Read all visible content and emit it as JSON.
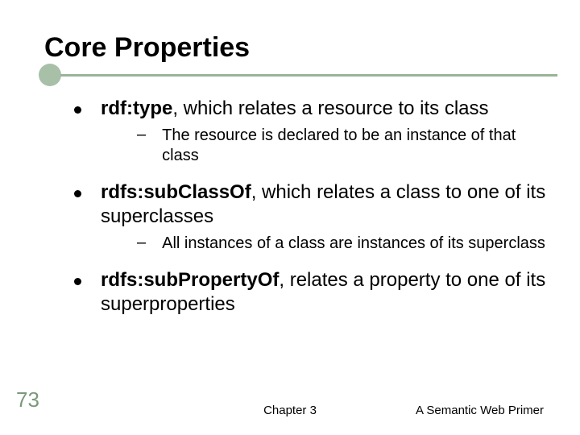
{
  "title": "Core Properties",
  "bullets": [
    {
      "text_pre": "rdf:type",
      "text_post": ", which relates a resource to its class",
      "sub": {
        "text": "The resource is declared to be an instance of that class"
      }
    },
    {
      "text_pre": "rdfs:subClassOf",
      "text_post": ", which relates a class to one of its superclasses",
      "sub": {
        "text": "All instances of a class are instances of its superclass"
      }
    },
    {
      "text_pre": "rdfs:subPropertyOf",
      "text_post": ", relates a property to one of its superproperties",
      "sub": null
    }
  ],
  "page_number": "73",
  "footer_center": "Chapter 3",
  "footer_right": "A Semantic Web Primer",
  "colors": {
    "accent": "#a8c0a8",
    "underline": "#99b399",
    "pagenum": "#7a997a"
  }
}
